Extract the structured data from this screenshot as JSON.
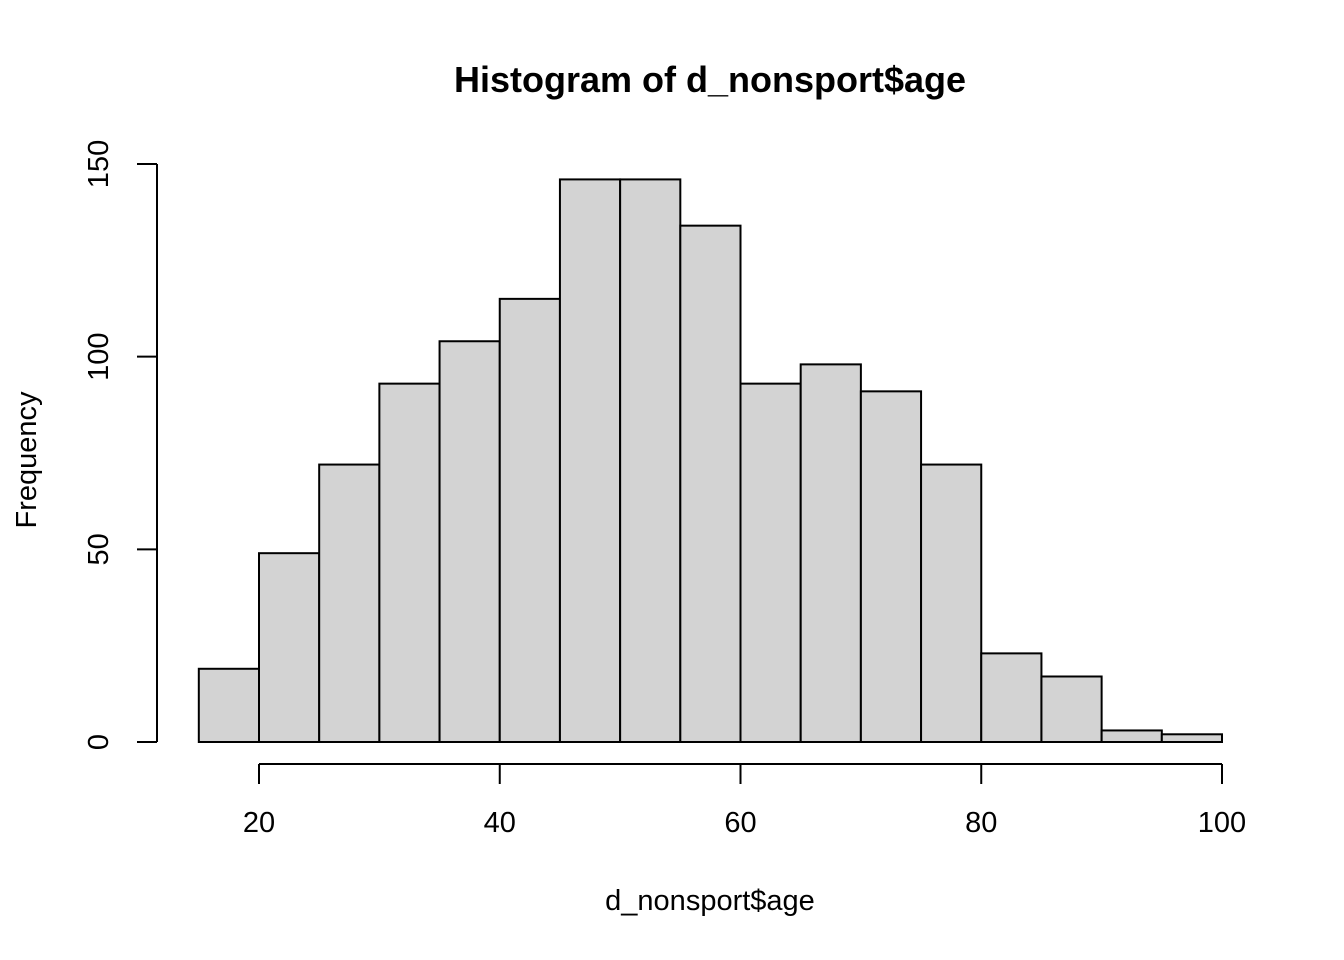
{
  "chart_data": {
    "type": "bar",
    "title": "Histogram of d_nonsport$age",
    "xlabel": "d_nonsport$age",
    "ylabel": "Frequency",
    "bin_edges": [
      15,
      20,
      25,
      30,
      35,
      40,
      45,
      50,
      55,
      60,
      65,
      70,
      75,
      80,
      85,
      90,
      95,
      100
    ],
    "values": [
      19,
      49,
      72,
      93,
      104,
      115,
      146,
      146,
      134,
      93,
      98,
      91,
      72,
      23,
      17,
      3,
      2
    ],
    "xlim": [
      15,
      100
    ],
    "ylim": [
      0,
      150
    ],
    "x_ticks": [
      20,
      40,
      60,
      80,
      100
    ],
    "y_ticks": [
      0,
      50,
      100,
      150
    ],
    "grid": false,
    "colors": {
      "bar_fill": "#d3d3d3",
      "bar_stroke": "#000000"
    }
  }
}
